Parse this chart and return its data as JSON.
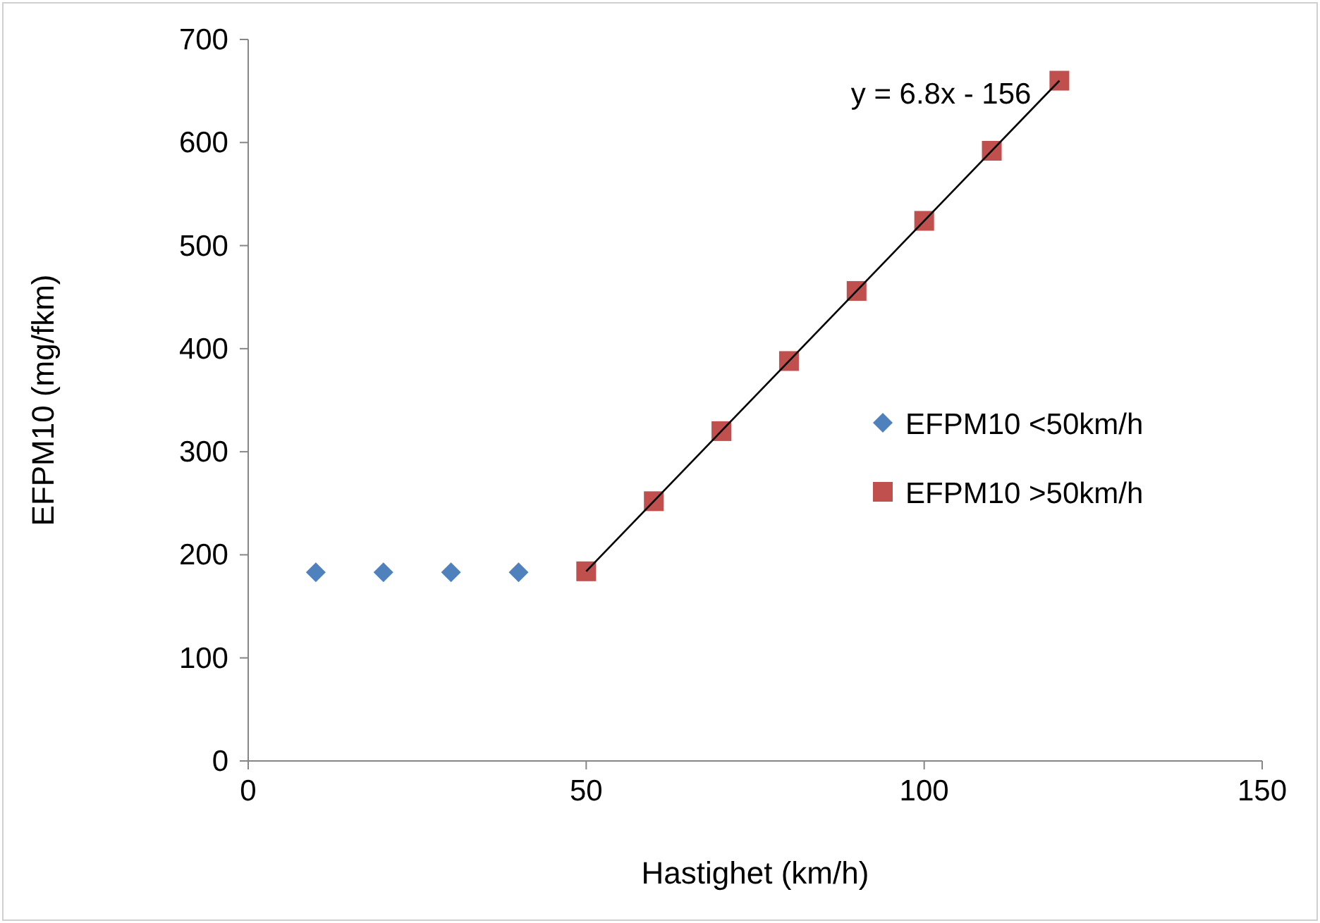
{
  "chart_data": {
    "type": "scatter",
    "xlabel": "Hastighet (km/h)",
    "ylabel": "EFPM10 (mg/fkm)",
    "xlim": [
      0,
      150
    ],
    "xticks": [
      0,
      50,
      100,
      150
    ],
    "ylim": [
      0,
      700
    ],
    "yticks": [
      0,
      100,
      200,
      300,
      400,
      500,
      600,
      700
    ],
    "grid": false,
    "legend": "right",
    "annotations": [
      "y = 6.8x - 156"
    ],
    "series": [
      {
        "name": "EFPM10 <50km/h",
        "color": "#4f81bd",
        "marker": "diamond",
        "x": [
          10,
          20,
          30,
          40
        ],
        "values": [
          183,
          183,
          183,
          183
        ]
      },
      {
        "name": "EFPM10 >50km/h",
        "color": "#c0504d",
        "marker": "square",
        "x": [
          50,
          60,
          70,
          80,
          90,
          100,
          110,
          120
        ],
        "values": [
          184,
          252,
          320,
          388,
          456,
          524,
          592,
          660
        ]
      },
      {
        "type": "line",
        "color": "#000000",
        "marker": "none",
        "x": [
          50,
          120
        ],
        "values": [
          184,
          660
        ]
      }
    ]
  }
}
